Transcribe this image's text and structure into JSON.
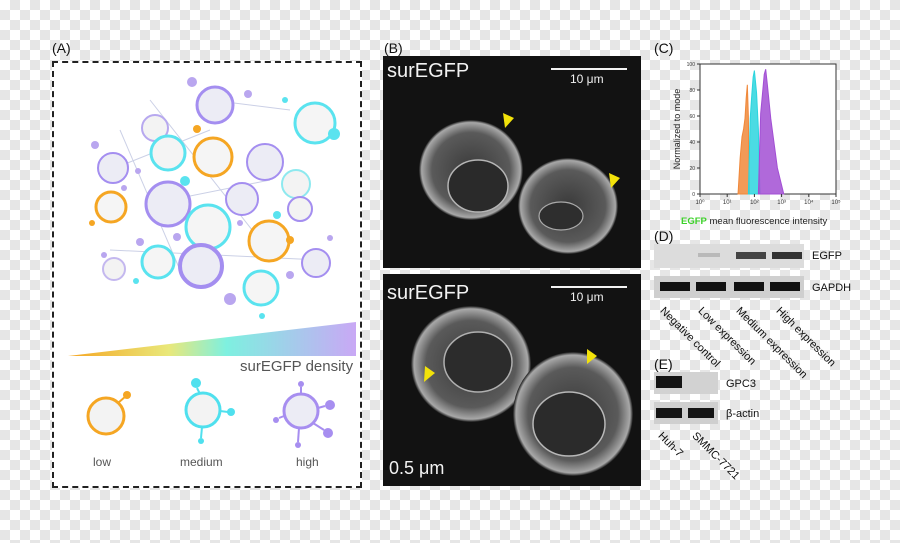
{
  "panels": {
    "a": "(A)",
    "b": "(B)",
    "c": "(C)",
    "d": "(D)",
    "e": "(E)"
  },
  "panel_a": {
    "density_label": "surEGFP density",
    "legend": [
      "low",
      "medium",
      "high"
    ],
    "colors": {
      "low": "#f5a623",
      "medium": "#4fe0ee",
      "high": "#a78ef0"
    }
  },
  "panel_b": {
    "top": {
      "label": "surEGFP",
      "scale": "10 μm"
    },
    "bottom": {
      "label": "surEGFP",
      "scale": "10 μm",
      "corner": "0.5 μm"
    }
  },
  "chart_data": {
    "type": "area",
    "xlabel_highlight": "EGFP",
    "xlabel_rest": " mean fluorescence intensity",
    "ylabel": "Normalized to mode",
    "x_scale": "log",
    "xlim": [
      1,
      100000
    ],
    "x_ticks": [
      "10⁰",
      "10¹",
      "10²",
      "10³",
      "10⁴",
      "10⁵"
    ],
    "ylim": [
      0,
      100
    ],
    "y_ticks": [
      "0",
      "20",
      "40",
      "60",
      "80",
      "100"
    ],
    "series": [
      {
        "color": "#f0883a",
        "x": [
          25,
          30,
          35,
          40,
          45,
          50,
          55,
          60,
          65
        ],
        "y": [
          0,
          28,
          44,
          50,
          58,
          74,
          84,
          60,
          0
        ]
      },
      {
        "color": "#2bd5de",
        "x": [
          60,
          70,
          80,
          90,
          100,
          110,
          120,
          140,
          160
        ],
        "y": [
          0,
          58,
          76,
          90,
          95,
          86,
          78,
          50,
          0
        ]
      },
      {
        "color": "#a24fd4",
        "x": [
          140,
          170,
          200,
          230,
          260,
          300,
          400,
          700,
          1200
        ],
        "y": [
          0,
          62,
          78,
          92,
          96,
          84,
          58,
          20,
          0
        ]
      }
    ]
  },
  "panel_d": {
    "bands": [
      "EGFP",
      "GAPDH"
    ],
    "lanes": [
      "Negative control",
      "Low expression",
      "Medium expression",
      "High expression"
    ]
  },
  "panel_e": {
    "bands": [
      "GPC3",
      "β-actin"
    ],
    "lanes": [
      "Huh-7",
      "SMMC-7721"
    ]
  }
}
